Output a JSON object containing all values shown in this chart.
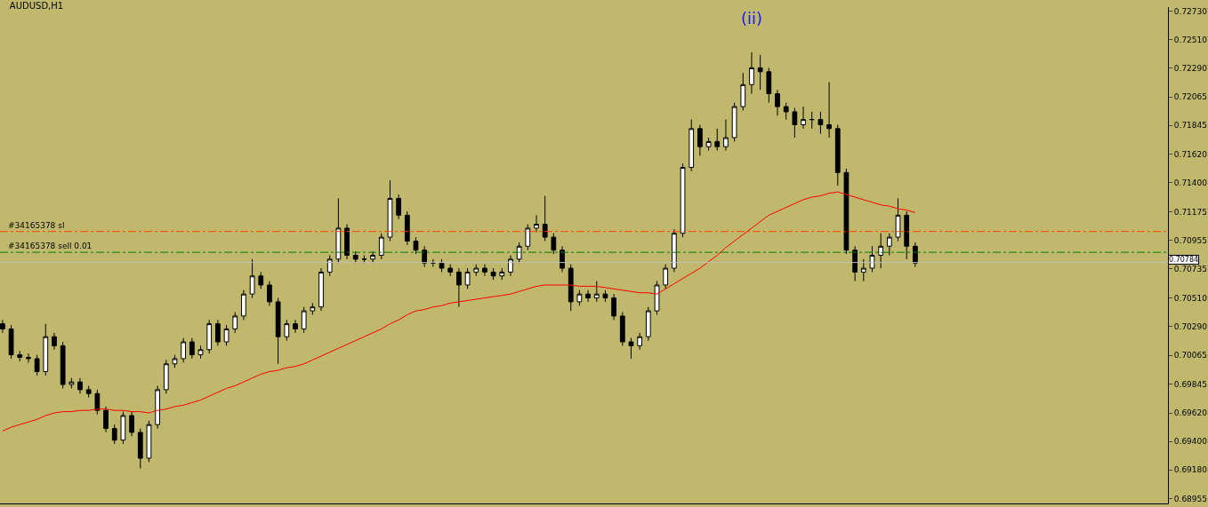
{
  "chart_data": {
    "type": "candlestick",
    "title": "AUDUSD,H1",
    "categories": [
      null,
      null,
      null,
      null,
      null,
      null,
      null,
      null,
      null,
      null,
      null,
      null,
      null,
      null,
      null,
      null,
      null,
      null,
      null,
      null,
      null,
      null,
      null,
      null,
      null,
      null,
      null,
      null,
      null,
      null,
      null,
      null,
      null,
      null,
      null,
      null,
      null,
      null,
      null,
      null,
      null,
      null,
      null,
      null,
      null,
      null,
      null,
      null,
      null,
      null,
      null,
      null,
      null,
      null,
      null,
      null,
      null,
      null,
      null,
      null,
      null,
      null,
      null,
      null,
      null,
      null,
      null,
      null,
      null,
      null,
      null,
      null,
      null,
      null,
      null,
      null,
      null,
      null,
      null,
      null,
      null,
      null,
      null,
      null,
      null,
      null,
      null,
      null,
      null,
      null,
      null,
      null,
      null,
      null,
      null,
      null,
      null,
      null,
      null,
      null,
      null,
      null,
      null,
      null,
      null,
      null,
      null
    ],
    "ohlc": [
      [
        0.7031,
        0.7034,
        0.7024,
        0.7027
      ],
      [
        0.7027,
        0.703,
        0.7004,
        0.7007
      ],
      [
        0.7007,
        0.701,
        0.7002,
        0.7005
      ],
      [
        0.7005,
        0.7008,
        0.7001,
        0.7004
      ],
      [
        0.7004,
        0.7007,
        0.6991,
        0.6994
      ],
      [
        0.6994,
        0.7031,
        0.6991,
        0.7021
      ],
      [
        0.7021,
        0.7024,
        0.7011,
        0.7014
      ],
      [
        0.7014,
        0.7017,
        0.6981,
        0.6984
      ],
      [
        0.6984,
        0.6989,
        0.6981,
        0.6986
      ],
      [
        0.6986,
        0.6989,
        0.6977,
        0.698
      ],
      [
        0.698,
        0.6983,
        0.6974,
        0.6977
      ],
      [
        0.6977,
        0.698,
        0.6961,
        0.6964
      ],
      [
        0.6964,
        0.6967,
        0.6947,
        0.695
      ],
      [
        0.695,
        0.6953,
        0.6938,
        0.6941
      ],
      [
        0.6941,
        0.6963,
        0.6938,
        0.696
      ],
      [
        0.696,
        0.6963,
        0.6944,
        0.6947
      ],
      [
        0.6947,
        0.695,
        0.6919,
        0.6927
      ],
      [
        0.6927,
        0.6956,
        0.6924,
        0.6953
      ],
      [
        0.6953,
        0.6983,
        0.695,
        0.698
      ],
      [
        0.698,
        0.7003,
        0.6977,
        0.7
      ],
      [
        0.7,
        0.7007,
        0.6997,
        0.7004
      ],
      [
        0.7004,
        0.702,
        0.7001,
        0.7017
      ],
      [
        0.7017,
        0.702,
        0.7004,
        0.7007
      ],
      [
        0.7007,
        0.7014,
        0.7004,
        0.7011
      ],
      [
        0.7011,
        0.7034,
        0.7008,
        0.7031
      ],
      [
        0.7031,
        0.7034,
        0.7014,
        0.7017
      ],
      [
        0.7017,
        0.703,
        0.7014,
        0.7027
      ],
      [
        0.7027,
        0.704,
        0.7024,
        0.7037
      ],
      [
        0.7037,
        0.7057,
        0.7034,
        0.7054
      ],
      [
        0.7054,
        0.7081,
        0.7051,
        0.7068
      ],
      [
        0.7068,
        0.7071,
        0.7058,
        0.7061
      ],
      [
        0.7061,
        0.7064,
        0.7045,
        0.7048
      ],
      [
        0.7048,
        0.7051,
        0.7,
        0.7021
      ],
      [
        0.7021,
        0.7034,
        0.7018,
        0.7031
      ],
      [
        0.7031,
        0.7034,
        0.7024,
        0.7027
      ],
      [
        0.7027,
        0.7044,
        0.7024,
        0.7041
      ],
      [
        0.7041,
        0.7047,
        0.7038,
        0.7044
      ],
      [
        0.7044,
        0.7074,
        0.7041,
        0.7071
      ],
      [
        0.7071,
        0.7084,
        0.7068,
        0.7081
      ],
      [
        0.7081,
        0.7128,
        0.7078,
        0.7105
      ],
      [
        0.7105,
        0.7108,
        0.7081,
        0.7084
      ],
      [
        0.7084,
        0.7087,
        0.7078,
        0.7081
      ],
      [
        0.7081,
        0.7084,
        0.7078,
        0.7081
      ],
      [
        0.7081,
        0.7087,
        0.7078,
        0.7084
      ],
      [
        0.7084,
        0.7101,
        0.7081,
        0.7098
      ],
      [
        0.7098,
        0.7142,
        0.7095,
        0.7128
      ],
      [
        0.7128,
        0.7131,
        0.7112,
        0.7115
      ],
      [
        0.7115,
        0.7118,
        0.7092,
        0.7095
      ],
      [
        0.7095,
        0.7098,
        0.7085,
        0.7088
      ],
      [
        0.7088,
        0.7091,
        0.7075,
        0.7078
      ],
      [
        0.7078,
        0.7081,
        0.7075,
        0.7078
      ],
      [
        0.7078,
        0.7081,
        0.7071,
        0.7074
      ],
      [
        0.7074,
        0.7077,
        0.7068,
        0.7071
      ],
      [
        0.7071,
        0.7074,
        0.7044,
        0.7061
      ],
      [
        0.7061,
        0.7074,
        0.7058,
        0.7071
      ],
      [
        0.7071,
        0.7077,
        0.7068,
        0.7074
      ],
      [
        0.7074,
        0.7077,
        0.7068,
        0.7071
      ],
      [
        0.7071,
        0.7074,
        0.7065,
        0.7068
      ],
      [
        0.7068,
        0.7074,
        0.7065,
        0.7071
      ],
      [
        0.7071,
        0.7084,
        0.7068,
        0.7081
      ],
      [
        0.7081,
        0.7094,
        0.7078,
        0.7091
      ],
      [
        0.7091,
        0.7108,
        0.7088,
        0.7105
      ],
      [
        0.7105,
        0.7115,
        0.7102,
        0.7108
      ],
      [
        0.7108,
        0.713,
        0.7095,
        0.7098
      ],
      [
        0.7098,
        0.7101,
        0.7085,
        0.7088
      ],
      [
        0.7088,
        0.7091,
        0.7071,
        0.7074
      ],
      [
        0.7074,
        0.7077,
        0.7041,
        0.7048
      ],
      [
        0.7048,
        0.7057,
        0.7045,
        0.7054
      ],
      [
        0.7054,
        0.7057,
        0.7048,
        0.7051
      ],
      [
        0.7051,
        0.7064,
        0.7048,
        0.7054
      ],
      [
        0.7054,
        0.7057,
        0.7048,
        0.7051
      ],
      [
        0.7051,
        0.7054,
        0.7034,
        0.7037
      ],
      [
        0.7037,
        0.704,
        0.7014,
        0.7017
      ],
      [
        0.7017,
        0.702,
        0.7004,
        0.7014
      ],
      [
        0.7014,
        0.7024,
        0.7011,
        0.7021
      ],
      [
        0.7021,
        0.7044,
        0.7018,
        0.7041
      ],
      [
        0.7041,
        0.7064,
        0.7038,
        0.7061
      ],
      [
        0.7061,
        0.7077,
        0.7058,
        0.7074
      ],
      [
        0.7074,
        0.7104,
        0.7071,
        0.7101
      ],
      [
        0.7101,
        0.7155,
        0.7098,
        0.7152
      ],
      [
        0.7152,
        0.7189,
        0.7149,
        0.7182
      ],
      [
        0.7182,
        0.7185,
        0.7161,
        0.7168
      ],
      [
        0.7168,
        0.7175,
        0.7165,
        0.7172
      ],
      [
        0.7172,
        0.7182,
        0.7165,
        0.7168
      ],
      [
        0.7168,
        0.7189,
        0.7165,
        0.7175
      ],
      [
        0.7175,
        0.7202,
        0.7172,
        0.7199
      ],
      [
        0.7199,
        0.7225,
        0.7196,
        0.7216
      ],
      [
        0.7216,
        0.7241,
        0.7209,
        0.7229
      ],
      [
        0.7229,
        0.7239,
        0.7212,
        0.7226
      ],
      [
        0.7226,
        0.7229,
        0.7202,
        0.7209
      ],
      [
        0.7209,
        0.7212,
        0.7192,
        0.7199
      ],
      [
        0.7199,
        0.7202,
        0.7189,
        0.7195
      ],
      [
        0.7195,
        0.7198,
        0.7175,
        0.7185
      ],
      [
        0.7185,
        0.7199,
        0.7182,
        0.7189
      ],
      [
        0.7189,
        0.7195,
        0.7182,
        0.7189
      ],
      [
        0.7189,
        0.7195,
        0.7178,
        0.7185
      ],
      [
        0.7185,
        0.7218,
        0.7175,
        0.7182
      ],
      [
        0.7182,
        0.7185,
        0.7138,
        0.7148
      ],
      [
        0.7148,
        0.7151,
        0.7085,
        0.7088
      ],
      [
        0.7088,
        0.7091,
        0.7064,
        0.7071
      ],
      [
        0.7071,
        0.7081,
        0.7064,
        0.7074
      ],
      [
        0.7074,
        0.7091,
        0.7071,
        0.7084
      ],
      [
        0.7084,
        0.7101,
        0.7074,
        0.7091
      ],
      [
        0.7091,
        0.7101,
        0.7084,
        0.7098
      ],
      [
        0.7098,
        0.7128,
        0.7095,
        0.7115
      ],
      [
        0.7115,
        0.7118,
        0.7081,
        0.7091
      ],
      [
        0.7091,
        0.7094,
        0.7075,
        0.7078
      ]
    ],
    "series": [
      {
        "type": "line",
        "color": "#ff0000",
        "values": [
          0.6948,
          0.6951,
          0.6953,
          0.6955,
          0.6957,
          0.696,
          0.6962,
          0.6963,
          0.6963,
          0.6964,
          0.6964,
          0.6965,
          0.6965,
          0.6964,
          0.6964,
          0.6963,
          0.6963,
          0.6962,
          0.6964,
          0.6965,
          0.6967,
          0.6968,
          0.697,
          0.6972,
          0.6975,
          0.6978,
          0.6981,
          0.6983,
          0.6986,
          0.6989,
          0.6992,
          0.6994,
          0.6995,
          0.6997,
          0.6998,
          0.7,
          0.7003,
          0.7006,
          0.7009,
          0.7012,
          0.7015,
          0.7018,
          0.7021,
          0.7024,
          0.7027,
          0.7031,
          0.7034,
          0.7038,
          0.7041,
          0.7042,
          0.7044,
          0.7045,
          0.7047,
          0.7048,
          0.7049,
          0.705,
          0.7051,
          0.7052,
          0.7053,
          0.7054,
          0.7056,
          0.7058,
          0.706,
          0.7061,
          0.7061,
          0.7061,
          0.7061,
          0.706,
          0.706,
          0.706,
          0.7059,
          0.7058,
          0.7057,
          0.7056,
          0.7055,
          0.7055,
          0.7054,
          0.7058,
          0.7062,
          0.7066,
          0.707,
          0.7074,
          0.7079,
          0.7084,
          0.709,
          0.7095,
          0.71,
          0.7105,
          0.711,
          0.7115,
          0.7118,
          0.7121,
          0.7124,
          0.7127,
          0.7129,
          0.713,
          0.7132,
          0.7133,
          0.7131,
          0.7129,
          0.7127,
          0.7125,
          0.7123,
          0.7122,
          0.712,
          0.7119,
          0.7117
        ]
      }
    ],
    "ylim": [
      0.6892,
      0.7276
    ],
    "yticks": [
      {
        "value": 0.7273,
        "label": "0.72730"
      },
      {
        "value": 0.7251,
        "label": "0.72510"
      },
      {
        "value": 0.7229,
        "label": "0.72290"
      },
      0.72065,
      0.71845,
      {
        "value": 0.7162,
        "label": "0.71620"
      },
      {
        "value": 0.714,
        "label": "0.71400"
      },
      0.71175,
      0.70955,
      0.70735,
      {
        "value": 0.7051,
        "label": "0.70510"
      },
      {
        "value": 0.7029,
        "label": "0.70290"
      },
      0.70065,
      0.69845,
      {
        "value": 0.6962,
        "label": "0.69620"
      },
      {
        "value": 0.694,
        "label": "0.69400"
      },
      {
        "value": 0.6918,
        "label": "0.69180"
      },
      0.68955
    ],
    "ref_lines": [
      {
        "axis": "y",
        "value": 0.71024,
        "label": "#34165378 sl",
        "color": "#ff4500",
        "line_style": "dashdot"
      },
      {
        "axis": "y",
        "value": 0.70863,
        "label": "#34165378 sell 0.01",
        "color": "#008000",
        "line_style": "dashdot"
      },
      {
        "axis": "y",
        "value": 0.70784,
        "label": "0.70784",
        "color": "#c0c0c0",
        "line_style": "solid"
      }
    ],
    "annotations": [
      "(ii)"
    ],
    "tick_labels": "y"
  }
}
